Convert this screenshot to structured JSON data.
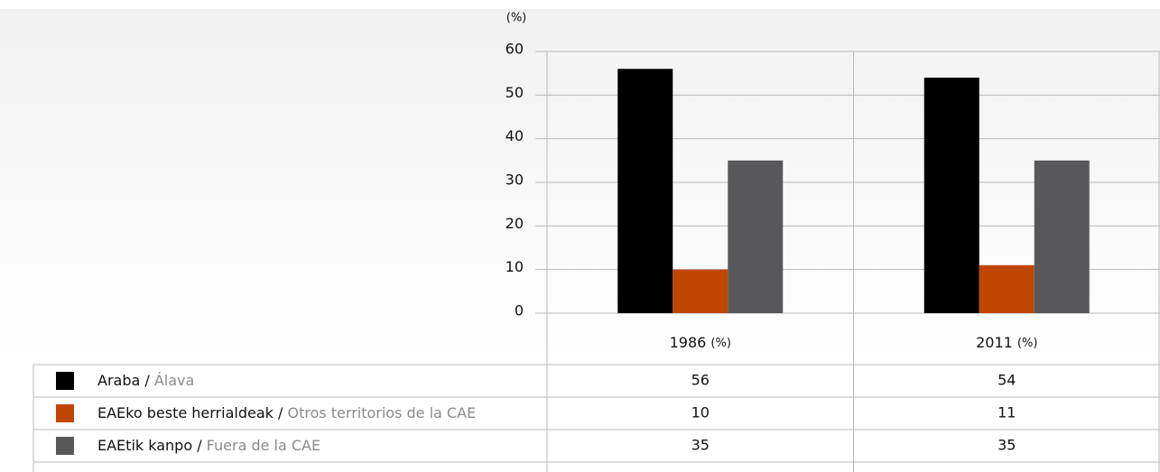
{
  "chart_data": {
    "type": "bar",
    "y_label": "(%)",
    "categories": [
      "1986",
      "2011"
    ],
    "category_unit": "(%)",
    "series": [
      {
        "name": "Araba / Álava",
        "color": "#000000",
        "values": [
          56,
          54
        ]
      },
      {
        "name": "EAEko beste herrialdeak / Otros territorios de la CAE",
        "color": "#c04600",
        "values": [
          10,
          11
        ]
      },
      {
        "name": "EAEtik kanpo / Fuera de la CAE",
        "color": "#58585a",
        "values": [
          35,
          35
        ]
      }
    ],
    "ylim": [
      0,
      60
    ],
    "yticks": [
      0,
      10,
      20,
      30,
      40,
      50,
      60
    ],
    "grid": true
  }
}
